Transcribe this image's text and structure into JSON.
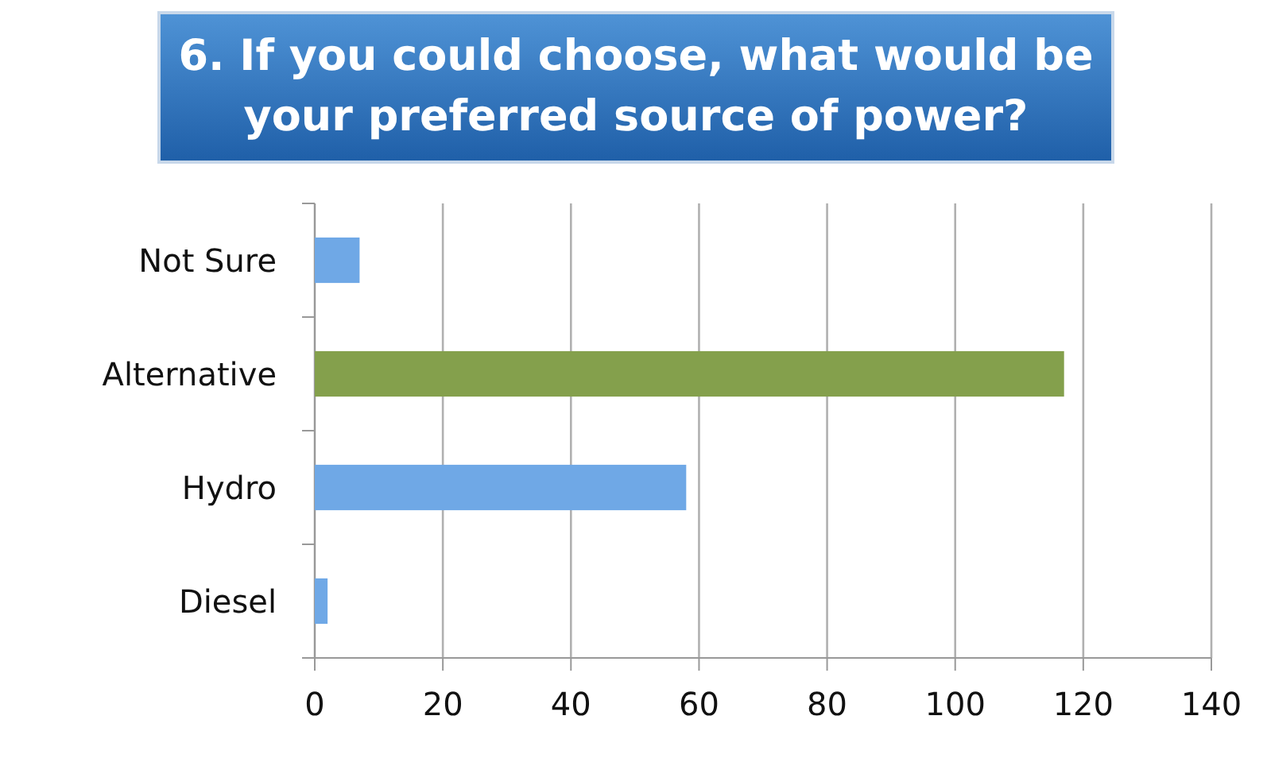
{
  "chart_data": {
    "type": "bar",
    "orientation": "horizontal",
    "title": "6. If you could choose, what would be your preferred source of power?",
    "categories": [
      "Not Sure",
      "Alternative",
      "Hydro",
      "Diesel"
    ],
    "values": [
      7,
      117,
      58,
      2
    ],
    "colors": [
      "#6fa8e6",
      "#84a04c",
      "#6fa8e6",
      "#6fa8e6"
    ],
    "xlim": [
      0,
      140
    ],
    "xticks": [
      0,
      20,
      40,
      60,
      80,
      100,
      120,
      140
    ],
    "grid": "x"
  }
}
